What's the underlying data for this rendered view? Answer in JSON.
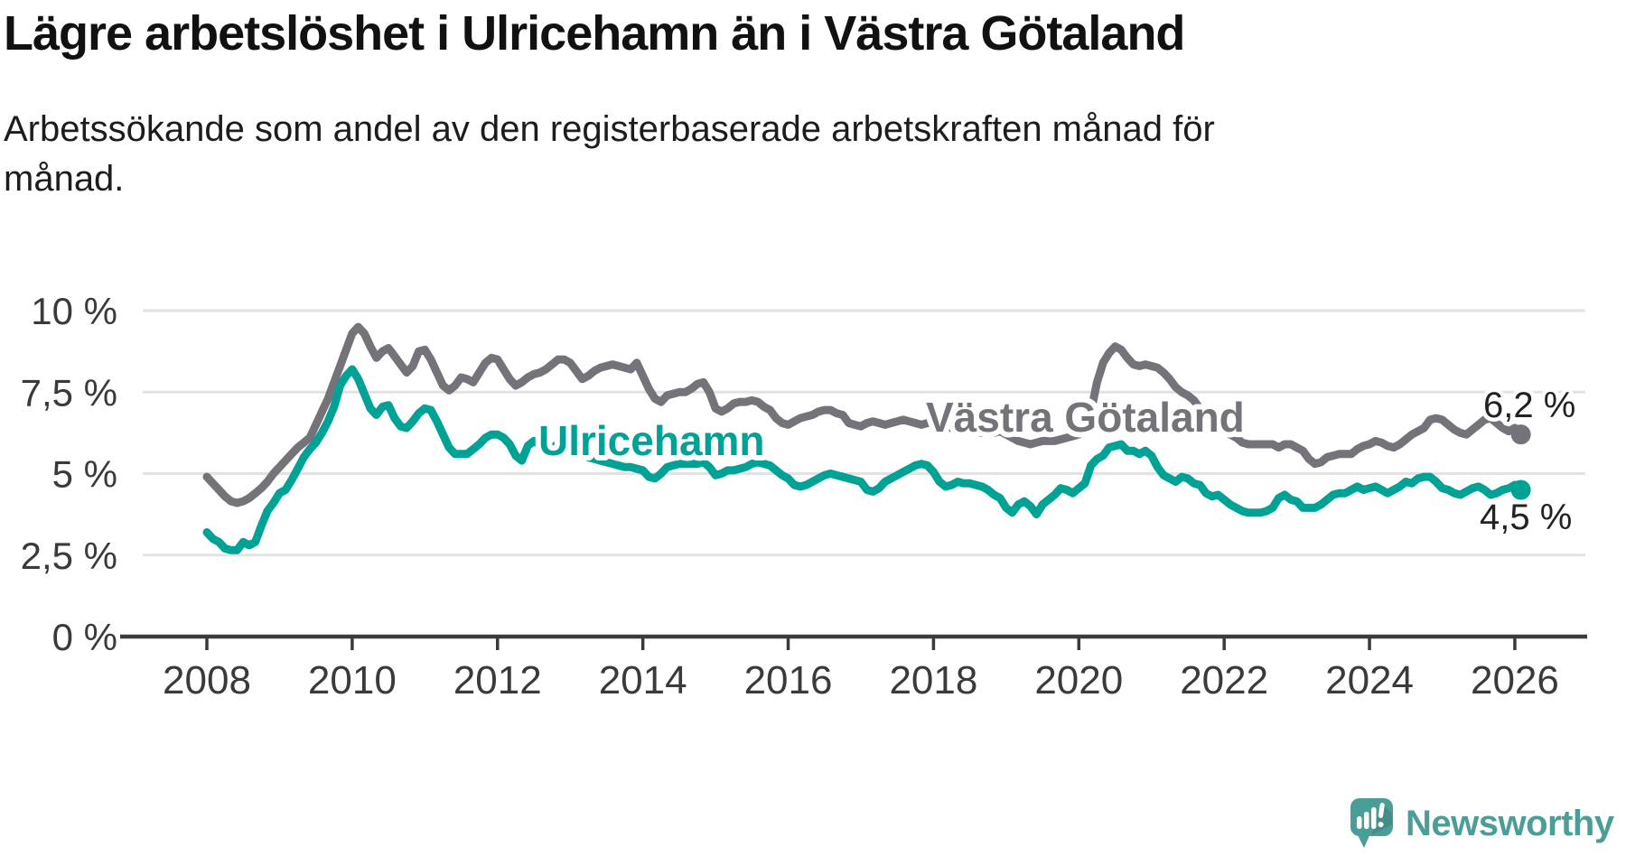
{
  "header": {
    "title": "Lägre arbetslöshet i Ulricehamn än i Västra Götaland",
    "subtitle": "Arbetssökande som andel av den registerbaserade arbetskraften månad för månad."
  },
  "footer": {
    "brand": "Newsworthy"
  },
  "colors": {
    "ulricehamn": "#00a295",
    "vastra_gotaland": "#75727a",
    "axis": "#3a3a3a",
    "gridline": "#e2e2e2",
    "value_label": "#222222",
    "logo_teal": "#4b9d97",
    "background": "#ffffff"
  },
  "chart_data": {
    "type": "line",
    "unit": "%",
    "frequency": "monthly",
    "x_start": "2008-01",
    "x_end": "2026-02",
    "grid": "horizontal",
    "ylim": [
      0,
      10.8
    ],
    "x_tick_labels": [
      "2008",
      "2010",
      "2012",
      "2014",
      "2016",
      "2018",
      "2020",
      "2022",
      "2024",
      "2026"
    ],
    "y_tick_labels": [
      {
        "value": 0,
        "label": "0 %"
      },
      {
        "value": 2.5,
        "label": "2,5 %"
      },
      {
        "value": 5,
        "label": "5 %"
      },
      {
        "value": 7.5,
        "label": "7,5 %"
      },
      {
        "value": 10,
        "label": "10 %"
      }
    ],
    "series": [
      {
        "name": "Västra Götaland",
        "color": "#75727a",
        "end_label": "6,2 %",
        "final_value": 6.2,
        "values": [
          4.9,
          4.7,
          4.5,
          4.3,
          4.15,
          4.1,
          4.15,
          4.25,
          4.4,
          4.55,
          4.75,
          5.0,
          5.2,
          5.4,
          5.6,
          5.8,
          5.95,
          6.1,
          6.5,
          6.9,
          7.3,
          7.8,
          8.3,
          8.8,
          9.3,
          9.5,
          9.3,
          8.9,
          8.55,
          8.75,
          8.85,
          8.6,
          8.35,
          8.1,
          8.3,
          8.75,
          8.8,
          8.5,
          8.1,
          7.7,
          7.55,
          7.7,
          7.95,
          7.9,
          7.8,
          8.1,
          8.4,
          8.55,
          8.5,
          8.2,
          7.9,
          7.7,
          7.8,
          7.95,
          8.05,
          8.1,
          8.2,
          8.35,
          8.5,
          8.5,
          8.4,
          8.15,
          7.9,
          8.0,
          8.15,
          8.25,
          8.3,
          8.35,
          8.3,
          8.25,
          8.2,
          8.4,
          8.0,
          7.6,
          7.3,
          7.2,
          7.4,
          7.45,
          7.5,
          7.5,
          7.6,
          7.75,
          7.8,
          7.5,
          7.0,
          6.9,
          7.0,
          7.15,
          7.2,
          7.2,
          7.25,
          7.2,
          7.05,
          6.95,
          6.7,
          6.55,
          6.5,
          6.6,
          6.7,
          6.75,
          6.8,
          6.9,
          6.95,
          6.95,
          6.85,
          6.8,
          6.55,
          6.5,
          6.45,
          6.55,
          6.6,
          6.55,
          6.5,
          6.55,
          6.6,
          6.65,
          6.6,
          6.55,
          6.5,
          6.55,
          6.55,
          6.5,
          6.45,
          6.4,
          6.35,
          6.35,
          6.3,
          6.3,
          6.25,
          6.25,
          6.25,
          6.3,
          6.2,
          6.1,
          6.0,
          5.95,
          5.9,
          5.95,
          6.0,
          6.0,
          6.0,
          6.05,
          6.1,
          6.15,
          6.2,
          6.3,
          6.9,
          7.8,
          8.4,
          8.7,
          8.9,
          8.8,
          8.55,
          8.35,
          8.3,
          8.35,
          8.3,
          8.25,
          8.1,
          7.9,
          7.65,
          7.5,
          7.4,
          7.25,
          7.0,
          6.8,
          6.6,
          6.45,
          6.3,
          6.2,
          6.1,
          5.95,
          5.9,
          5.9,
          5.9,
          5.9,
          5.9,
          5.8,
          5.9,
          5.9,
          5.8,
          5.7,
          5.45,
          5.3,
          5.35,
          5.5,
          5.55,
          5.6,
          5.6,
          5.6,
          5.75,
          5.85,
          5.9,
          6.0,
          5.95,
          5.85,
          5.8,
          5.9,
          6.05,
          6.2,
          6.3,
          6.4,
          6.65,
          6.7,
          6.65,
          6.5,
          6.35,
          6.25,
          6.2,
          6.35,
          6.5,
          6.65,
          6.7,
          6.55,
          6.4,
          6.3,
          6.4,
          6.2
        ]
      },
      {
        "name": "Ulricehamn",
        "color": "#00a295",
        "end_label": "4,5 %",
        "final_value": 4.5,
        "values": [
          3.2,
          3.0,
          2.9,
          2.7,
          2.65,
          2.65,
          2.9,
          2.8,
          2.9,
          3.4,
          3.85,
          4.1,
          4.4,
          4.5,
          4.8,
          5.15,
          5.5,
          5.75,
          5.95,
          6.25,
          6.6,
          7.05,
          7.7,
          8.0,
          8.2,
          7.9,
          7.45,
          7.0,
          6.8,
          7.05,
          7.1,
          6.7,
          6.45,
          6.4,
          6.6,
          6.85,
          7.0,
          6.95,
          6.6,
          6.2,
          5.8,
          5.6,
          5.6,
          5.6,
          5.75,
          5.9,
          6.1,
          6.2,
          6.2,
          6.1,
          5.9,
          5.55,
          5.4,
          5.85,
          6.0,
          5.9,
          5.85,
          5.8,
          5.9,
          5.85,
          5.8,
          5.7,
          5.6,
          5.5,
          5.45,
          5.4,
          5.35,
          5.3,
          5.25,
          5.2,
          5.2,
          5.15,
          5.1,
          4.9,
          4.85,
          5.0,
          5.2,
          5.25,
          5.3,
          5.3,
          5.3,
          5.3,
          5.35,
          5.2,
          4.95,
          5.0,
          5.1,
          5.1,
          5.15,
          5.2,
          5.3,
          5.35,
          5.3,
          5.25,
          5.1,
          4.95,
          4.85,
          4.65,
          4.6,
          4.65,
          4.75,
          4.85,
          4.95,
          5.0,
          4.95,
          4.9,
          4.85,
          4.8,
          4.75,
          4.5,
          4.45,
          4.55,
          4.75,
          4.85,
          4.95,
          5.05,
          5.15,
          5.25,
          5.3,
          5.25,
          5.05,
          4.75,
          4.6,
          4.65,
          4.75,
          4.7,
          4.7,
          4.65,
          4.6,
          4.5,
          4.35,
          4.25,
          3.95,
          3.8,
          4.05,
          4.15,
          4.0,
          3.75,
          4.05,
          4.2,
          4.35,
          4.55,
          4.5,
          4.4,
          4.55,
          4.7,
          5.25,
          5.45,
          5.55,
          5.8,
          5.85,
          5.9,
          5.7,
          5.7,
          5.6,
          5.7,
          5.55,
          5.2,
          4.95,
          4.85,
          4.75,
          4.9,
          4.85,
          4.7,
          4.65,
          4.4,
          4.3,
          4.35,
          4.2,
          4.05,
          3.95,
          3.85,
          3.8,
          3.8,
          3.8,
          3.85,
          3.95,
          4.25,
          4.35,
          4.2,
          4.15,
          3.95,
          3.95,
          3.95,
          4.05,
          4.2,
          4.35,
          4.4,
          4.4,
          4.5,
          4.6,
          4.5,
          4.55,
          4.6,
          4.5,
          4.4,
          4.5,
          4.6,
          4.75,
          4.7,
          4.85,
          4.9,
          4.9,
          4.75,
          4.55,
          4.5,
          4.4,
          4.35,
          4.45,
          4.55,
          4.6,
          4.5,
          4.35,
          4.4,
          4.5,
          4.55,
          4.65,
          4.5
        ]
      }
    ]
  }
}
